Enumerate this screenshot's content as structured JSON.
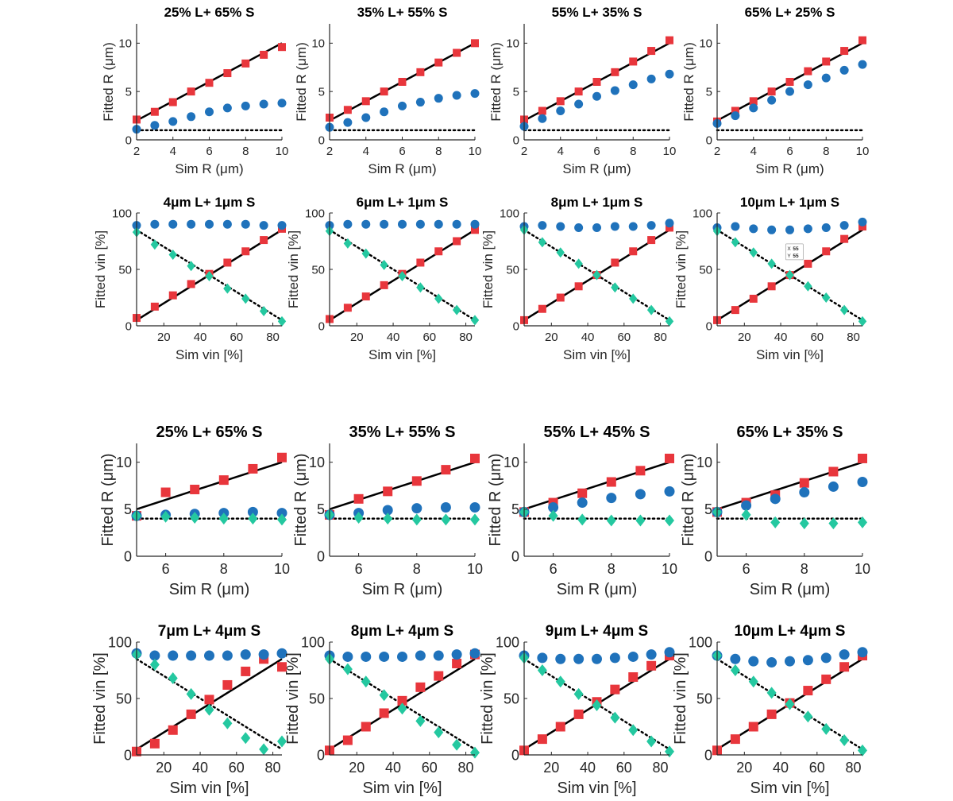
{
  "colors": {
    "red": "#e8363c",
    "blue": "#1f72bb",
    "green": "#24c8a0",
    "line": "#000000"
  },
  "chart_data": [
    {
      "type": "scatter",
      "title": "25% L+ 65% S",
      "xlabel": "Sim R (μm)",
      "ylabel": "Fitted R (μm)",
      "xlim": [
        2,
        10
      ],
      "ylim": [
        0,
        12
      ],
      "xticks": [
        2,
        4,
        6,
        8,
        10
      ],
      "yticks": [
        0,
        5,
        10
      ],
      "x": [
        2,
        3,
        4,
        5,
        6,
        7,
        8,
        9,
        10
      ],
      "series": [
        {
          "name": "red",
          "marker": "square",
          "values": [
            2.1,
            2.9,
            3.9,
            5.0,
            5.9,
            6.9,
            7.9,
            8.8,
            9.6
          ]
        },
        {
          "name": "blue",
          "marker": "circle",
          "values": [
            1.1,
            1.5,
            1.9,
            2.4,
            2.9,
            3.3,
            3.5,
            3.7,
            3.8
          ]
        }
      ],
      "identity_line": true,
      "reference_line": 1
    },
    {
      "type": "scatter",
      "title": "35% L+ 55% S",
      "xlabel": "Sim R (μm)",
      "ylabel": "Fitted R (μm)",
      "xlim": [
        2,
        10
      ],
      "ylim": [
        0,
        12
      ],
      "xticks": [
        2,
        4,
        6,
        8,
        10
      ],
      "yticks": [
        0,
        5,
        10
      ],
      "x": [
        2,
        3,
        4,
        5,
        6,
        7,
        8,
        9,
        10
      ],
      "series": [
        {
          "name": "red",
          "marker": "square",
          "values": [
            2.3,
            3.1,
            4.0,
            5.0,
            6.0,
            7.0,
            8.0,
            9.0,
            10.0
          ]
        },
        {
          "name": "blue",
          "marker": "circle",
          "values": [
            1.3,
            1.8,
            2.3,
            2.9,
            3.5,
            3.9,
            4.3,
            4.6,
            4.8
          ]
        }
      ],
      "identity_line": true,
      "reference_line": 1
    },
    {
      "type": "scatter",
      "title": "55% L+ 35% S",
      "xlabel": "Sim R (μm)",
      "ylabel": "Fitted R (μm)",
      "xlim": [
        2,
        10
      ],
      "ylim": [
        0,
        12
      ],
      "xticks": [
        2,
        4,
        6,
        8,
        10
      ],
      "yticks": [
        0,
        5,
        10
      ],
      "x": [
        2,
        3,
        4,
        5,
        6,
        7,
        8,
        9,
        10
      ],
      "series": [
        {
          "name": "red",
          "marker": "square",
          "values": [
            2.1,
            3.0,
            4.0,
            5.0,
            6.0,
            7.0,
            8.1,
            9.2,
            10.3
          ]
        },
        {
          "name": "blue",
          "marker": "circle",
          "values": [
            1.4,
            2.2,
            3.0,
            3.7,
            4.5,
            5.1,
            5.7,
            6.3,
            6.8
          ]
        }
      ],
      "identity_line": true,
      "reference_line": 1
    },
    {
      "type": "scatter",
      "title": "65% L+ 25% S",
      "xlabel": "Sim R (μm)",
      "ylabel": "Fitted R (μm)",
      "xlim": [
        2,
        10
      ],
      "ylim": [
        0,
        12
      ],
      "xticks": [
        2,
        4,
        6,
        8,
        10
      ],
      "yticks": [
        0,
        5,
        10
      ],
      "x": [
        2,
        3,
        4,
        5,
        6,
        7,
        8,
        9,
        10
      ],
      "series": [
        {
          "name": "red",
          "marker": "square",
          "values": [
            1.9,
            3.0,
            4.0,
            5.0,
            6.0,
            7.1,
            8.1,
            9.2,
            10.3
          ]
        },
        {
          "name": "blue",
          "marker": "circle",
          "values": [
            1.7,
            2.5,
            3.3,
            4.1,
            5.0,
            5.7,
            6.4,
            7.2,
            7.8
          ]
        }
      ],
      "identity_line": true,
      "reference_line": 1
    },
    {
      "type": "scatter",
      "title": "4μm L+ 1μm S",
      "xlabel": "Sim vin [%]",
      "ylabel": "Fitted vin [%]",
      "xlim": [
        5,
        85
      ],
      "ylim": [
        0,
        100
      ],
      "xticks": [
        20,
        40,
        60,
        80
      ],
      "yticks": [
        0,
        50,
        100
      ],
      "x": [
        5,
        15,
        25,
        35,
        45,
        55,
        65,
        75,
        85
      ],
      "series": [
        {
          "name": "red",
          "marker": "square",
          "values": [
            7,
            17,
            27,
            37,
            46,
            56,
            66,
            76,
            86
          ]
        },
        {
          "name": "blue",
          "marker": "circle",
          "values": [
            89,
            90,
            90,
            90,
            90,
            90,
            90,
            89,
            89
          ]
        },
        {
          "name": "green",
          "marker": "diamond",
          "values": [
            83,
            72,
            63,
            53,
            44,
            33,
            24,
            13,
            4
          ]
        }
      ],
      "identity_line": true,
      "complement_line": true
    },
    {
      "type": "scatter",
      "title": "6μm L+ 1μm S",
      "xlabel": "Sim vin [%]",
      "ylabel": "Fitted vin [%]",
      "xlim": [
        5,
        85
      ],
      "ylim": [
        0,
        100
      ],
      "xticks": [
        20,
        40,
        60,
        80
      ],
      "yticks": [
        0,
        50,
        100
      ],
      "x": [
        5,
        15,
        25,
        35,
        45,
        55,
        65,
        75,
        85
      ],
      "series": [
        {
          "name": "red",
          "marker": "square",
          "values": [
            6,
            16,
            26,
            36,
            46,
            56,
            66,
            75,
            85
          ]
        },
        {
          "name": "blue",
          "marker": "circle",
          "values": [
            89,
            90,
            90,
            90,
            90,
            90,
            90,
            90,
            90
          ]
        },
        {
          "name": "green",
          "marker": "diamond",
          "values": [
            84,
            73,
            64,
            54,
            44,
            34,
            24,
            14,
            5
          ]
        }
      ],
      "identity_line": true,
      "complement_line": true
    },
    {
      "type": "scatter",
      "title": "8μm L+ 1μm S",
      "xlabel": "Sim vin [%]",
      "ylabel": "Fitted vin [%]",
      "xlim": [
        5,
        85
      ],
      "ylim": [
        0,
        100
      ],
      "xticks": [
        20,
        40,
        60,
        80
      ],
      "yticks": [
        0,
        50,
        100
      ],
      "x": [
        5,
        15,
        25,
        35,
        45,
        55,
        65,
        75,
        85
      ],
      "series": [
        {
          "name": "red",
          "marker": "square",
          "values": [
            5,
            15,
            25,
            35,
            45,
            56,
            66,
            76,
            87
          ]
        },
        {
          "name": "blue",
          "marker": "circle",
          "values": [
            88,
            89,
            88,
            87,
            87,
            88,
            88,
            89,
            91
          ]
        },
        {
          "name": "green",
          "marker": "diamond",
          "values": [
            85,
            74,
            65,
            55,
            45,
            34,
            24,
            14,
            4
          ]
        }
      ],
      "identity_line": true,
      "complement_line": true
    },
    {
      "type": "scatter",
      "title": "10μm L+ 1μm S",
      "xlabel": "Sim vin [%]",
      "ylabel": "Fitted vin [%]",
      "xlim": [
        5,
        85
      ],
      "ylim": [
        0,
        100
      ],
      "xticks": [
        20,
        40,
        60,
        80
      ],
      "yticks": [
        0,
        50,
        100
      ],
      "x": [
        5,
        15,
        25,
        35,
        45,
        55,
        65,
        75,
        85
      ],
      "series": [
        {
          "name": "red",
          "marker": "square",
          "values": [
            5,
            14,
            24,
            35,
            45,
            55,
            66,
            77,
            88
          ]
        },
        {
          "name": "blue",
          "marker": "circle",
          "values": [
            87,
            88,
            86,
            85,
            85,
            86,
            87,
            89,
            92
          ]
        },
        {
          "name": "green",
          "marker": "diamond",
          "values": [
            84,
            74,
            65,
            55,
            45,
            35,
            25,
            14,
            4
          ]
        }
      ],
      "identity_line": true,
      "complement_line": true,
      "annotation": {
        "x_label": "X",
        "x_value": "55",
        "y_label": "Y",
        "y_value": "55"
      }
    },
    {
      "type": "scatter",
      "title": "25% L+ 65% S",
      "xlabel": "Sim R (μm)",
      "ylabel": "Fitted R (μm)",
      "xlim": [
        5,
        10
      ],
      "ylim": [
        0,
        12
      ],
      "xticks": [
        6,
        8,
        10
      ],
      "yticks": [
        0,
        5,
        10
      ],
      "x": [
        5,
        6,
        7,
        8,
        9,
        10
      ],
      "series": [
        {
          "name": "red",
          "marker": "square",
          "values": [
            4.3,
            6.8,
            7.1,
            8.1,
            9.3,
            10.5
          ]
        },
        {
          "name": "blue",
          "marker": "circle",
          "values": [
            4.3,
            4.4,
            4.5,
            4.6,
            4.7,
            4.6
          ]
        },
        {
          "name": "green",
          "marker": "diamond",
          "values": [
            4.3,
            4.2,
            4.1,
            4.0,
            4.0,
            3.9
          ]
        }
      ],
      "identity_line": true,
      "reference_line": 4
    },
    {
      "type": "scatter",
      "title": "35% L+ 55% S",
      "xlabel": "Sim R (μm)",
      "ylabel": "Fitted R (μm)",
      "xlim": [
        5,
        10
      ],
      "ylim": [
        0,
        12
      ],
      "xticks": [
        6,
        8,
        10
      ],
      "yticks": [
        0,
        5,
        10
      ],
      "x": [
        5,
        6,
        7,
        8,
        9,
        10
      ],
      "series": [
        {
          "name": "red",
          "marker": "square",
          "values": [
            4.4,
            6.1,
            6.9,
            8.0,
            9.2,
            10.4
          ]
        },
        {
          "name": "blue",
          "marker": "circle",
          "values": [
            4.4,
            4.6,
            4.9,
            5.1,
            5.2,
            5.2
          ]
        },
        {
          "name": "green",
          "marker": "diamond",
          "values": [
            4.4,
            4.1,
            4.0,
            3.9,
            3.9,
            3.9
          ]
        }
      ],
      "identity_line": true,
      "reference_line": 4
    },
    {
      "type": "scatter",
      "title": "55% L+ 45% S",
      "xlabel": "Sim R (μm)",
      "ylabel": "Fitted R (μm)",
      "xlim": [
        5,
        10
      ],
      "ylim": [
        0,
        12
      ],
      "xticks": [
        6,
        8,
        10
      ],
      "yticks": [
        0,
        5,
        10
      ],
      "x": [
        5,
        6,
        7,
        8,
        9,
        10
      ],
      "series": [
        {
          "name": "red",
          "marker": "square",
          "values": [
            4.7,
            5.7,
            6.7,
            7.9,
            9.1,
            10.4
          ]
        },
        {
          "name": "blue",
          "marker": "circle",
          "values": [
            4.7,
            5.2,
            5.7,
            6.2,
            6.6,
            6.9
          ]
        },
        {
          "name": "green",
          "marker": "diamond",
          "values": [
            4.7,
            4.3,
            3.9,
            3.8,
            3.8,
            3.8
          ]
        }
      ],
      "identity_line": true,
      "reference_line": 4
    },
    {
      "type": "scatter",
      "title": "65% L+ 35% S",
      "xlabel": "Sim R (μm)",
      "ylabel": "Fitted R (μm)",
      "xlim": [
        5,
        10
      ],
      "ylim": [
        0,
        12
      ],
      "xticks": [
        6,
        8,
        10
      ],
      "yticks": [
        0,
        5,
        10
      ],
      "x": [
        5,
        6,
        7,
        8,
        9,
        10
      ],
      "series": [
        {
          "name": "red",
          "marker": "square",
          "values": [
            4.7,
            5.7,
            6.5,
            7.8,
            9.0,
            10.4
          ]
        },
        {
          "name": "blue",
          "marker": "circle",
          "values": [
            4.7,
            5.4,
            6.1,
            6.8,
            7.4,
            7.9
          ]
        },
        {
          "name": "green",
          "marker": "diamond",
          "values": [
            4.7,
            4.4,
            3.6,
            3.5,
            3.5,
            3.6
          ]
        }
      ],
      "identity_line": true,
      "reference_line": 4
    },
    {
      "type": "scatter",
      "title": "7μm L+ 4μm S",
      "xlabel": "Sim vin [%]",
      "ylabel": "Fitted vin [%]",
      "xlim": [
        5,
        85
      ],
      "ylim": [
        0,
        100
      ],
      "xticks": [
        20,
        40,
        60,
        80
      ],
      "yticks": [
        0,
        50,
        100
      ],
      "x": [
        5,
        15,
        25,
        35,
        45,
        55,
        65,
        75,
        85
      ],
      "series": [
        {
          "name": "red",
          "marker": "square",
          "values": [
            3,
            10,
            22,
            36,
            49,
            62,
            74,
            85,
            78
          ]
        },
        {
          "name": "blue",
          "marker": "circle",
          "values": [
            90,
            88,
            88,
            88,
            88,
            88,
            89,
            89,
            90
          ]
        },
        {
          "name": "green",
          "marker": "diamond",
          "values": [
            89,
            80,
            68,
            54,
            40,
            28,
            15,
            5,
            12
          ]
        }
      ],
      "identity_line": true,
      "complement_line": true
    },
    {
      "type": "scatter",
      "title": "8μm L+ 4μm S",
      "xlabel": "Sim vin [%]",
      "ylabel": "Fitted vin [%]",
      "xlim": [
        5,
        85
      ],
      "ylim": [
        0,
        100
      ],
      "xticks": [
        20,
        40,
        60,
        80
      ],
      "yticks": [
        0,
        50,
        100
      ],
      "x": [
        5,
        15,
        25,
        35,
        45,
        55,
        65,
        75,
        85
      ],
      "series": [
        {
          "name": "red",
          "marker": "square",
          "values": [
            4,
            13,
            25,
            37,
            48,
            60,
            70,
            81,
            89
          ]
        },
        {
          "name": "blue",
          "marker": "circle",
          "values": [
            88,
            87,
            87,
            87,
            87,
            88,
            88,
            89,
            90
          ]
        },
        {
          "name": "green",
          "marker": "diamond",
          "values": [
            85,
            76,
            65,
            53,
            41,
            30,
            20,
            9,
            2
          ]
        }
      ],
      "identity_line": true,
      "complement_line": true
    },
    {
      "type": "scatter",
      "title": "9μm L+ 4μm S",
      "xlabel": "Sim vin [%]",
      "ylabel": "Fitted vin [%]",
      "xlim": [
        5,
        85
      ],
      "ylim": [
        0,
        100
      ],
      "xticks": [
        20,
        40,
        60,
        80
      ],
      "yticks": [
        0,
        50,
        100
      ],
      "x": [
        5,
        15,
        25,
        35,
        45,
        55,
        65,
        75,
        85
      ],
      "series": [
        {
          "name": "red",
          "marker": "square",
          "values": [
            4,
            14,
            25,
            36,
            47,
            58,
            69,
            79,
            88
          ]
        },
        {
          "name": "blue",
          "marker": "circle",
          "values": [
            88,
            86,
            85,
            85,
            85,
            86,
            87,
            89,
            91
          ]
        },
        {
          "name": "green",
          "marker": "diamond",
          "values": [
            86,
            75,
            65,
            54,
            44,
            33,
            22,
            12,
            3
          ]
        }
      ],
      "identity_line": true,
      "complement_line": true
    },
    {
      "type": "scatter",
      "title": "10μm L+ 4μm S",
      "xlabel": "Sim vin [%]",
      "ylabel": "Fitted vin [%]",
      "xlim": [
        5,
        85
      ],
      "ylim": [
        0,
        100
      ],
      "xticks": [
        20,
        40,
        60,
        80
      ],
      "yticks": [
        0,
        50,
        100
      ],
      "x": [
        5,
        15,
        25,
        35,
        45,
        55,
        65,
        75,
        85
      ],
      "series": [
        {
          "name": "red",
          "marker": "square",
          "values": [
            4,
            14,
            25,
            36,
            46,
            57,
            67,
            78,
            88
          ]
        },
        {
          "name": "blue",
          "marker": "circle",
          "values": [
            88,
            85,
            83,
            82,
            83,
            84,
            86,
            89,
            91
          ]
        },
        {
          "name": "green",
          "marker": "diamond",
          "values": [
            88,
            75,
            65,
            55,
            45,
            34,
            23,
            13,
            4
          ]
        }
      ],
      "identity_line": true,
      "complement_line": true
    }
  ]
}
